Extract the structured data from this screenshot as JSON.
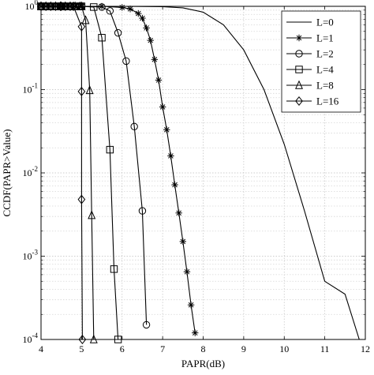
{
  "chart_data": {
    "type": "line",
    "title": "",
    "xlabel": "PAPR(dB)",
    "ylabel": "CCDF(PAPR>Value)",
    "xlim": [
      4,
      12
    ],
    "ylim": [
      0.0001,
      1
    ],
    "yscale": "log",
    "grid": "on, major and minor (dotted)",
    "legend_position": "top-right",
    "x_ticks": [
      "4",
      "5",
      "6",
      "7",
      "8",
      "9",
      "10",
      "11",
      "12"
    ],
    "y_ticks": [
      {
        "base": "10",
        "exp": "0"
      },
      {
        "base": "10",
        "exp": "-1"
      },
      {
        "base": "10",
        "exp": "-2"
      },
      {
        "base": "10",
        "exp": "-3"
      },
      {
        "base": "10",
        "exp": "-4"
      }
    ],
    "series": [
      {
        "name": "L=0",
        "marker": "none",
        "x": [
          4.0,
          5.0,
          6.0,
          7.0,
          7.5,
          8.0,
          8.5,
          9.0,
          9.5,
          10.0,
          10.5,
          11.0,
          11.5,
          11.85
        ],
        "y": [
          1.0,
          1.0,
          1.0,
          0.99,
          0.96,
          0.85,
          0.6,
          0.3,
          0.1,
          0.022,
          0.0035,
          0.0005,
          0.00035,
          0.0001
        ]
      },
      {
        "name": "L=1",
        "marker": "asterisk",
        "x": [
          4.0,
          4.5,
          5.0,
          5.5,
          6.0,
          6.2,
          6.4,
          6.5,
          6.6,
          6.7,
          6.8,
          6.9,
          7.0,
          7.1,
          7.2,
          7.3,
          7.4,
          7.5,
          7.6,
          7.7,
          7.8
        ],
        "y": [
          1.0,
          1.0,
          1.0,
          1.0,
          0.97,
          0.93,
          0.82,
          0.72,
          0.55,
          0.39,
          0.23,
          0.13,
          0.062,
          0.033,
          0.016,
          0.0072,
          0.0033,
          0.0015,
          0.00065,
          0.00026,
          0.00012
        ]
      },
      {
        "name": "L=2",
        "marker": "circle",
        "x": [
          4.0,
          4.5,
          5.0,
          5.5,
          5.7,
          5.9,
          6.1,
          6.3,
          6.5,
          6.6
        ],
        "y": [
          1.0,
          1.0,
          1.0,
          0.98,
          0.88,
          0.48,
          0.22,
          0.036,
          0.0035,
          0.00015
        ]
      },
      {
        "name": "L=4",
        "marker": "square",
        "x": [
          4.0,
          4.5,
          5.0,
          5.3,
          5.5,
          5.7,
          5.8,
          5.9
        ],
        "y": [
          1.0,
          1.0,
          1.0,
          0.98,
          0.42,
          0.019,
          0.0007,
          0.0001
        ]
      },
      {
        "name": "L=8",
        "marker": "triangle",
        "x": [
          4.0,
          4.5,
          5.0,
          5.1,
          5.2,
          5.25,
          5.3
        ],
        "y": [
          1.0,
          1.0,
          1.0,
          0.68,
          0.098,
          0.0031,
          0.0001
        ]
      },
      {
        "name": "L=16",
        "marker": "diamond",
        "x": [
          4.0,
          4.5,
          4.8,
          5.0,
          5.0,
          5.0,
          5.02
        ],
        "y": [
          1.0,
          1.0,
          1.0,
          0.57,
          0.095,
          0.0048,
          0.0001
        ]
      }
    ]
  }
}
